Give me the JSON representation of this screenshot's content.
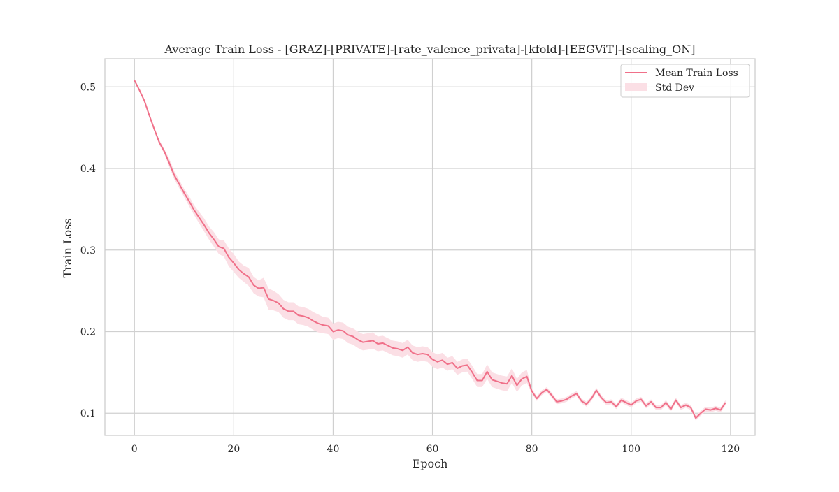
{
  "chart_data": {
    "type": "line",
    "title": "Average Train Loss - [GRAZ]-[PRIVATE]-[rate_valence_privata]-[kfold]-[EEGViT]-[scaling_ON]",
    "xlabel": "Epoch",
    "ylabel": "Train Loss",
    "xlim": [
      -5.95,
      124.95
    ],
    "ylim": [
      0.0728,
      0.5345
    ],
    "x_ticks": [
      0,
      20,
      40,
      60,
      80,
      100,
      120
    ],
    "y_ticks": [
      0.1,
      0.2,
      0.3,
      0.4,
      0.5
    ],
    "x_tick_labels": [
      "0",
      "20",
      "40",
      "60",
      "80",
      "100",
      "120"
    ],
    "y_tick_labels": [
      "0.1",
      "0.2",
      "0.3",
      "0.4",
      "0.5"
    ],
    "grid": true,
    "legend": {
      "position": "top-right",
      "entries": [
        "Mean Train Loss",
        "Std Dev"
      ]
    },
    "colors": {
      "line": "#f07089",
      "band": "#fbdfe5",
      "grid": "#d0d0d0",
      "frame": "#cccccc"
    },
    "series": [
      {
        "name": "Mean Train Loss",
        "x": [
          0,
          1,
          2,
          3,
          4,
          5,
          6,
          7,
          8,
          9,
          10,
          11,
          12,
          13,
          14,
          15,
          16,
          17,
          18,
          19,
          20,
          21,
          22,
          23,
          24,
          25,
          26,
          27,
          28,
          29,
          30,
          31,
          32,
          33,
          34,
          35,
          36,
          37,
          38,
          39,
          40,
          41,
          42,
          43,
          44,
          45,
          46,
          47,
          48,
          49,
          50,
          51,
          52,
          53,
          54,
          55,
          56,
          57,
          58,
          59,
          60,
          61,
          62,
          63,
          64,
          65,
          66,
          67,
          68,
          69,
          70,
          71,
          72,
          73,
          74,
          75,
          76,
          77,
          78,
          79,
          80,
          81,
          82,
          83,
          84,
          85,
          86,
          87,
          88,
          89,
          90,
          91,
          92,
          93,
          94,
          95,
          96,
          97,
          98,
          99,
          100,
          101,
          102,
          103,
          104,
          105,
          106,
          107,
          108,
          109,
          110,
          111,
          112,
          113,
          114,
          115,
          116,
          117,
          118,
          119
        ],
        "values": [
          0.508,
          0.496,
          0.483,
          0.465,
          0.448,
          0.432,
          0.421,
          0.407,
          0.392,
          0.381,
          0.37,
          0.36,
          0.349,
          0.34,
          0.331,
          0.321,
          0.313,
          0.304,
          0.302,
          0.291,
          0.284,
          0.276,
          0.271,
          0.267,
          0.257,
          0.253,
          0.254,
          0.24,
          0.238,
          0.235,
          0.228,
          0.225,
          0.225,
          0.22,
          0.219,
          0.217,
          0.213,
          0.21,
          0.208,
          0.207,
          0.2,
          0.202,
          0.201,
          0.196,
          0.194,
          0.19,
          0.187,
          0.188,
          0.189,
          0.185,
          0.186,
          0.183,
          0.18,
          0.179,
          0.177,
          0.181,
          0.174,
          0.172,
          0.173,
          0.172,
          0.166,
          0.163,
          0.165,
          0.16,
          0.162,
          0.155,
          0.158,
          0.159,
          0.15,
          0.14,
          0.14,
          0.151,
          0.141,
          0.139,
          0.137,
          0.136,
          0.146,
          0.134,
          0.142,
          0.145,
          0.127,
          0.118,
          0.125,
          0.129,
          0.122,
          0.114,
          0.115,
          0.117,
          0.121,
          0.124,
          0.115,
          0.111,
          0.118,
          0.128,
          0.119,
          0.113,
          0.114,
          0.108,
          0.116,
          0.113,
          0.11,
          0.115,
          0.117,
          0.109,
          0.114,
          0.107,
          0.107,
          0.113,
          0.105,
          0.116,
          0.107,
          0.11,
          0.107,
          0.094,
          0.1,
          0.105,
          0.104,
          0.106,
          0.104,
          0.113
        ]
      }
    ],
    "std_dev": {
      "name": "Std Dev",
      "values": [
        0.0,
        0.0,
        0.0,
        0.002,
        0.002,
        0.003,
        0.003,
        0.005,
        0.005,
        0.005,
        0.005,
        0.006,
        0.006,
        0.007,
        0.008,
        0.008,
        0.009,
        0.009,
        0.01,
        0.011,
        0.011,
        0.01,
        0.01,
        0.011,
        0.01,
        0.01,
        0.012,
        0.013,
        0.012,
        0.011,
        0.011,
        0.011,
        0.011,
        0.011,
        0.011,
        0.011,
        0.011,
        0.011,
        0.01,
        0.01,
        0.01,
        0.01,
        0.01,
        0.01,
        0.01,
        0.01,
        0.01,
        0.01,
        0.01,
        0.009,
        0.009,
        0.009,
        0.009,
        0.009,
        0.009,
        0.009,
        0.009,
        0.009,
        0.009,
        0.009,
        0.009,
        0.009,
        0.009,
        0.008,
        0.008,
        0.008,
        0.008,
        0.008,
        0.008,
        0.008,
        0.008,
        0.009,
        0.009,
        0.009,
        0.009,
        0.009,
        0.009,
        0.008,
        0.008,
        0.008,
        0.003,
        0.003,
        0.003,
        0.003,
        0.003,
        0.003,
        0.003,
        0.003,
        0.003,
        0.003,
        0.003,
        0.003,
        0.003,
        0.003,
        0.003,
        0.003,
        0.003,
        0.003,
        0.003,
        0.003,
        0.003,
        0.003,
        0.003,
        0.003,
        0.003,
        0.003,
        0.003,
        0.003,
        0.003,
        0.003,
        0.003,
        0.003,
        0.003,
        0.003,
        0.003,
        0.003,
        0.003,
        0.003,
        0.003,
        0.003
      ]
    }
  }
}
